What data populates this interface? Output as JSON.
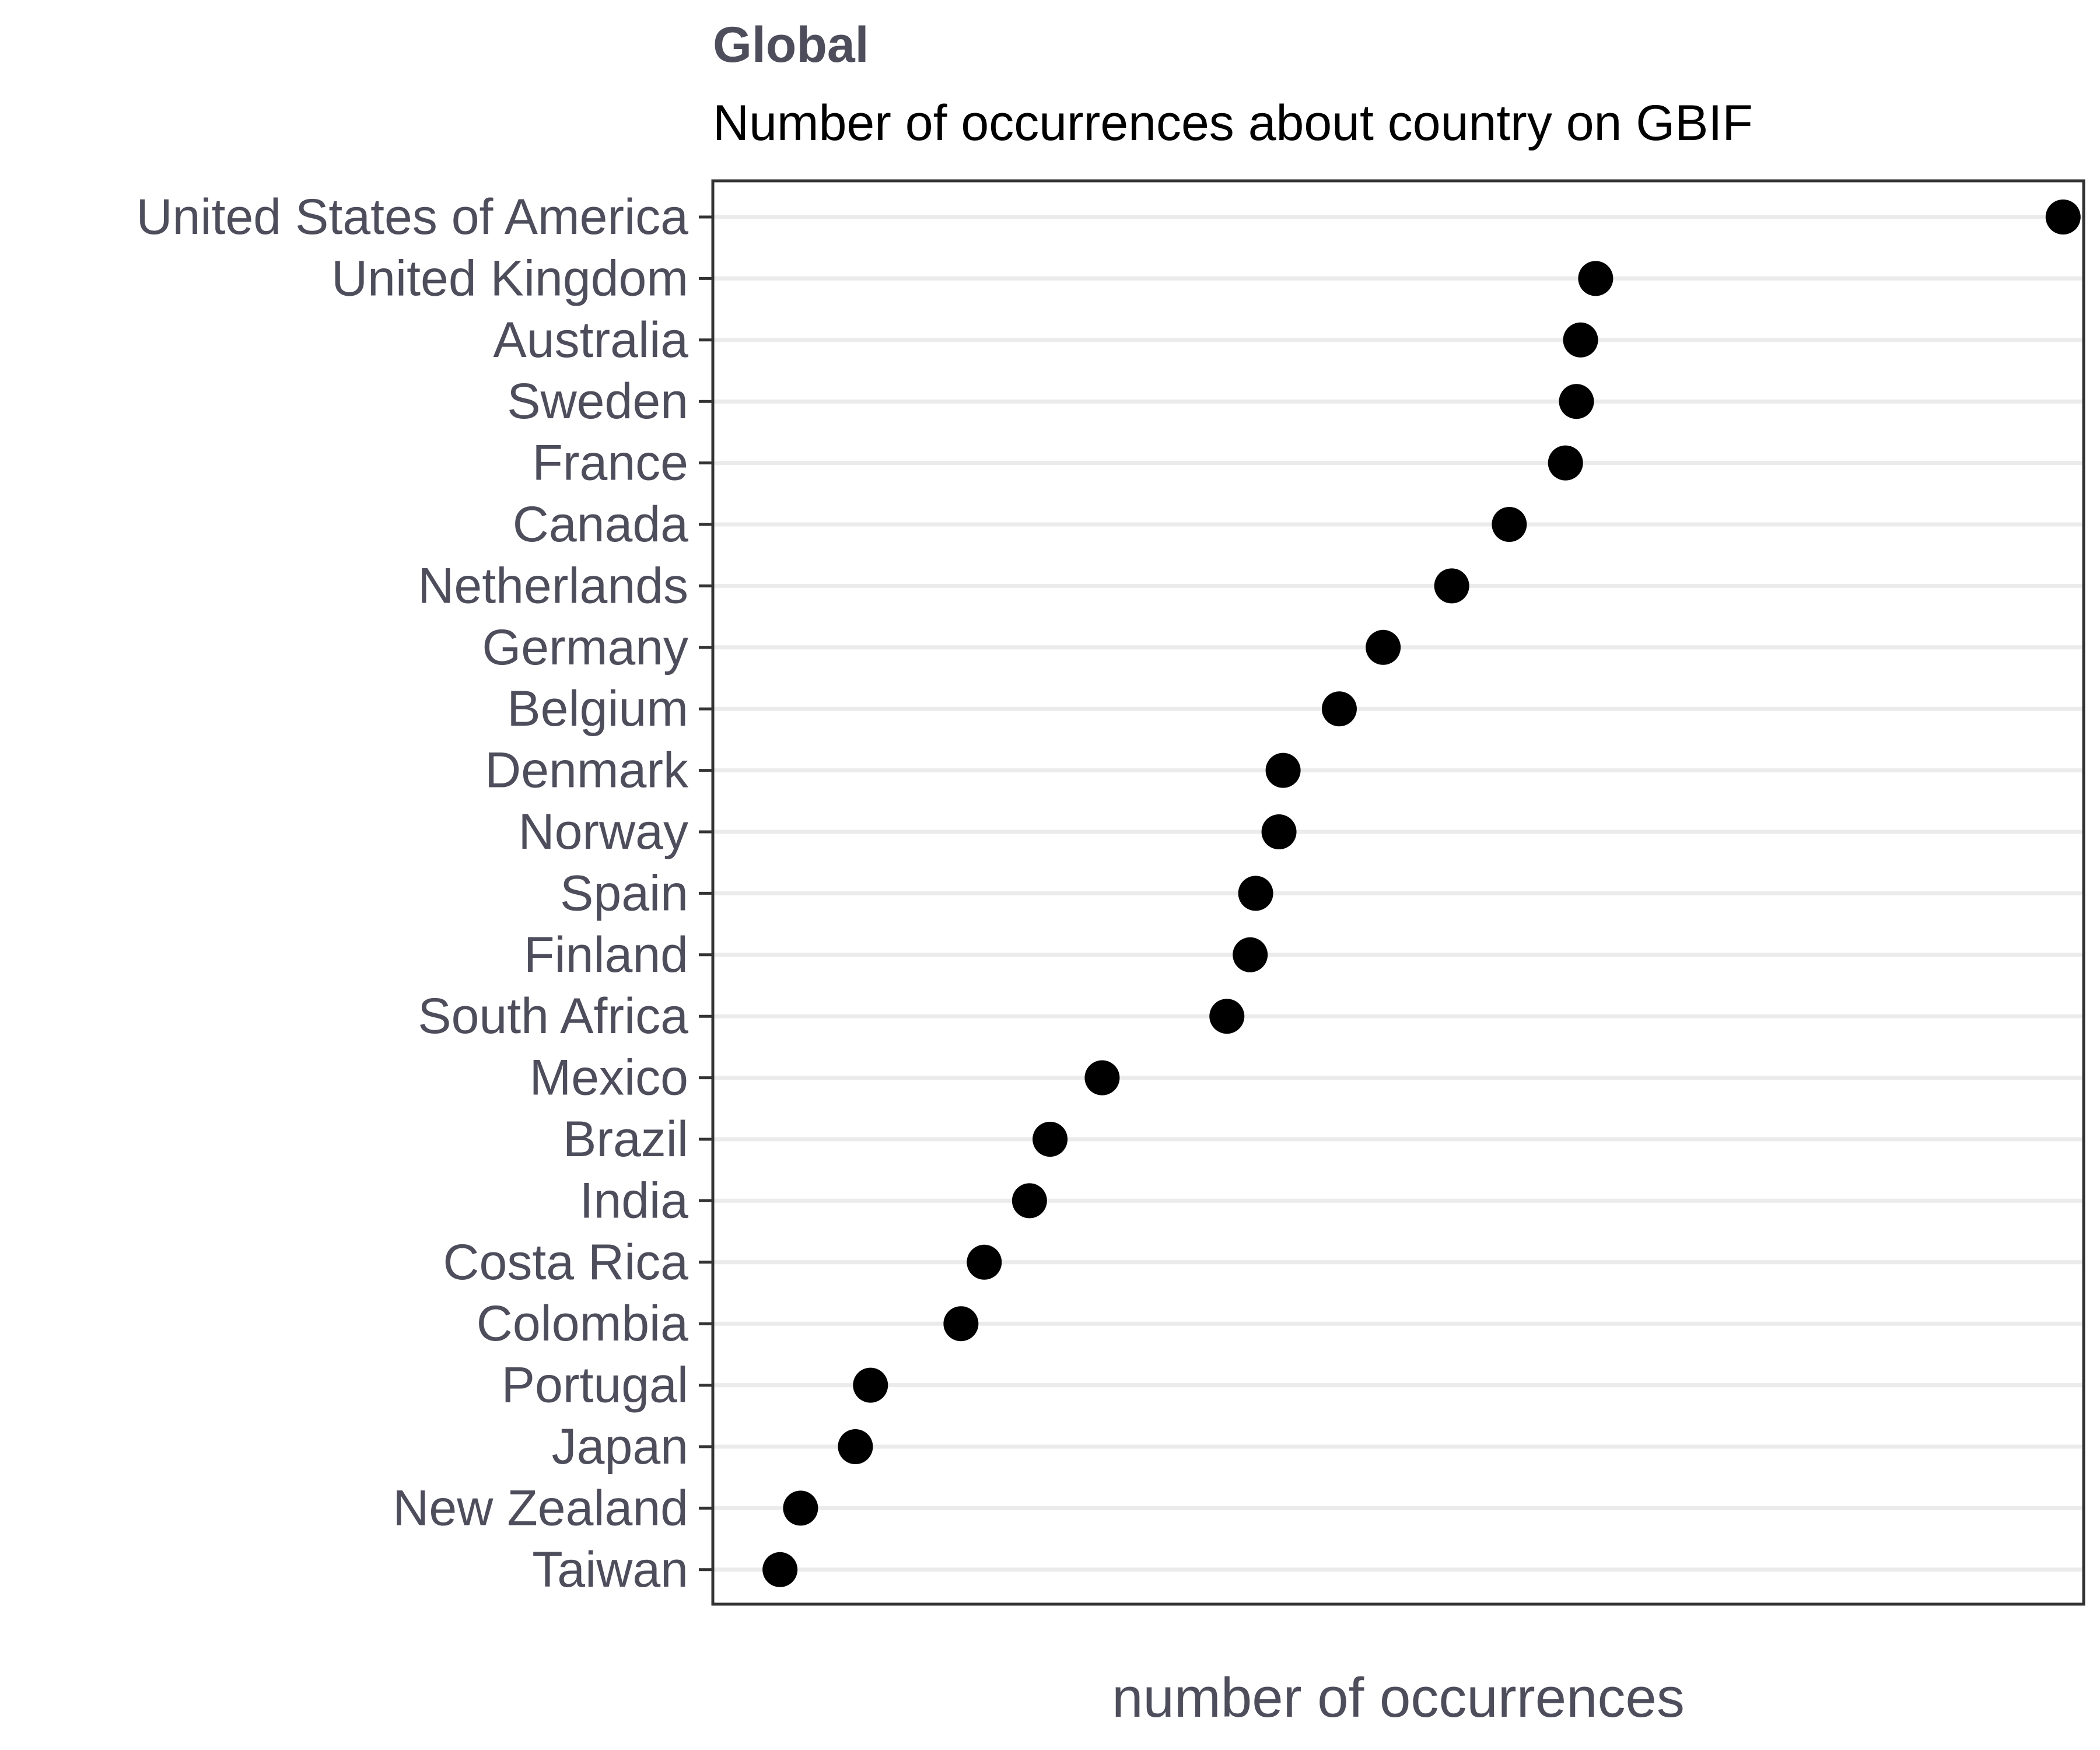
{
  "chart_data": {
    "type": "scatter",
    "title": "Global",
    "subtitle": "Number of occurrences about country on GBIF",
    "xlabel": "number of occurrences",
    "ylabel": "",
    "x_tick_labels": [],
    "grid": "horizontal",
    "legend": "none",
    "point_color": "#000000",
    "categories": [
      "United States of America",
      "United Kingdom",
      "Australia",
      "Sweden",
      "France",
      "Canada",
      "Netherlands",
      "Germany",
      "Belgium",
      "Denmark",
      "Norway",
      "Spain",
      "Finland",
      "South Africa",
      "Mexico",
      "Brazil",
      "India",
      "Costa Rica",
      "Colombia",
      "Portugal",
      "Japan",
      "New Zealand",
      "Taiwan"
    ],
    "values": [
      98.5,
      64.4,
      63.3,
      63.0,
      62.2,
      58.1,
      53.9,
      48.9,
      45.7,
      41.6,
      41.3,
      39.6,
      39.2,
      37.5,
      28.4,
      24.6,
      23.1,
      19.8,
      18.1,
      11.5,
      10.4,
      6.4,
      4.9
    ],
    "xlim": [
      0,
      100
    ]
  }
}
